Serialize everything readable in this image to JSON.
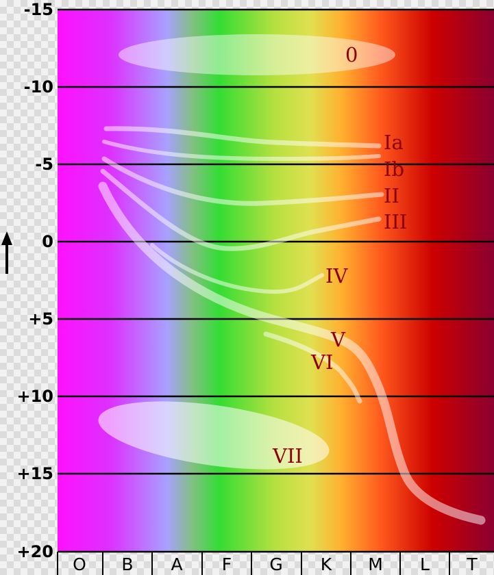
{
  "diagram": {
    "y_ticks": [
      "-15",
      "-10",
      "-5",
      "0",
      "+5",
      "+10",
      "+15",
      "+20"
    ],
    "x_ticks": [
      "O",
      "B",
      "A",
      "F",
      "G",
      "K",
      "M",
      "L",
      "T"
    ],
    "luminosity_classes": [
      "0",
      "Ia",
      "Ib",
      "II",
      "III",
      "IV",
      "V",
      "VI",
      "VII"
    ],
    "colors": {
      "label": "#8b0000",
      "spectrum": [
        "#ff10ff",
        "#c850ff",
        "#a8a0ff",
        "#33dd33",
        "#b8e040",
        "#ffb030",
        "#ff5a1e",
        "#cc0000",
        "#8b0030"
      ]
    }
  }
}
